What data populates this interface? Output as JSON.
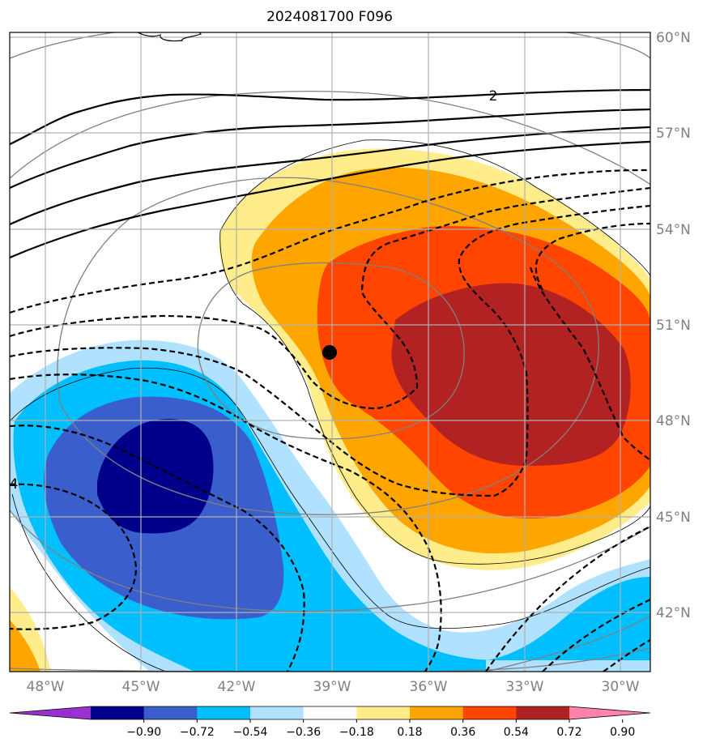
{
  "title": "2024081700 F096",
  "lat_labels": [
    "60°N",
    "57°N",
    "54°N",
    "51°N",
    "48°N",
    "45°N",
    "42°N"
  ],
  "lon_labels": [
    "48°W",
    "45°W",
    "42°W",
    "39°W",
    "36°W",
    "33°W",
    "30°W"
  ],
  "colorbar": {
    "tick_labels": [
      "−0.90",
      "−0.72",
      "−0.54",
      "−0.36",
      "−0.18",
      "0.18",
      "0.36",
      "0.54",
      "0.72",
      "0.90"
    ],
    "colors": [
      "#9b30d0",
      "#00008b",
      "#3a5fcd",
      "#00bfff",
      "#b0e2ff",
      "#ffffff",
      "#ffec8b",
      "#ffa500",
      "#ff4500",
      "#b22222",
      "#ff82ab"
    ],
    "extend": "both"
  },
  "contour_labels": {
    "upper_right": "2",
    "left_edge": "4"
  },
  "colors": {
    "grid": "#b0b0b0",
    "tick_text": "#808080",
    "circle_lines": "#808080",
    "contour_lines": "#000000"
  },
  "marker": {
    "type": "filled-circle",
    "color": "#000000"
  }
}
